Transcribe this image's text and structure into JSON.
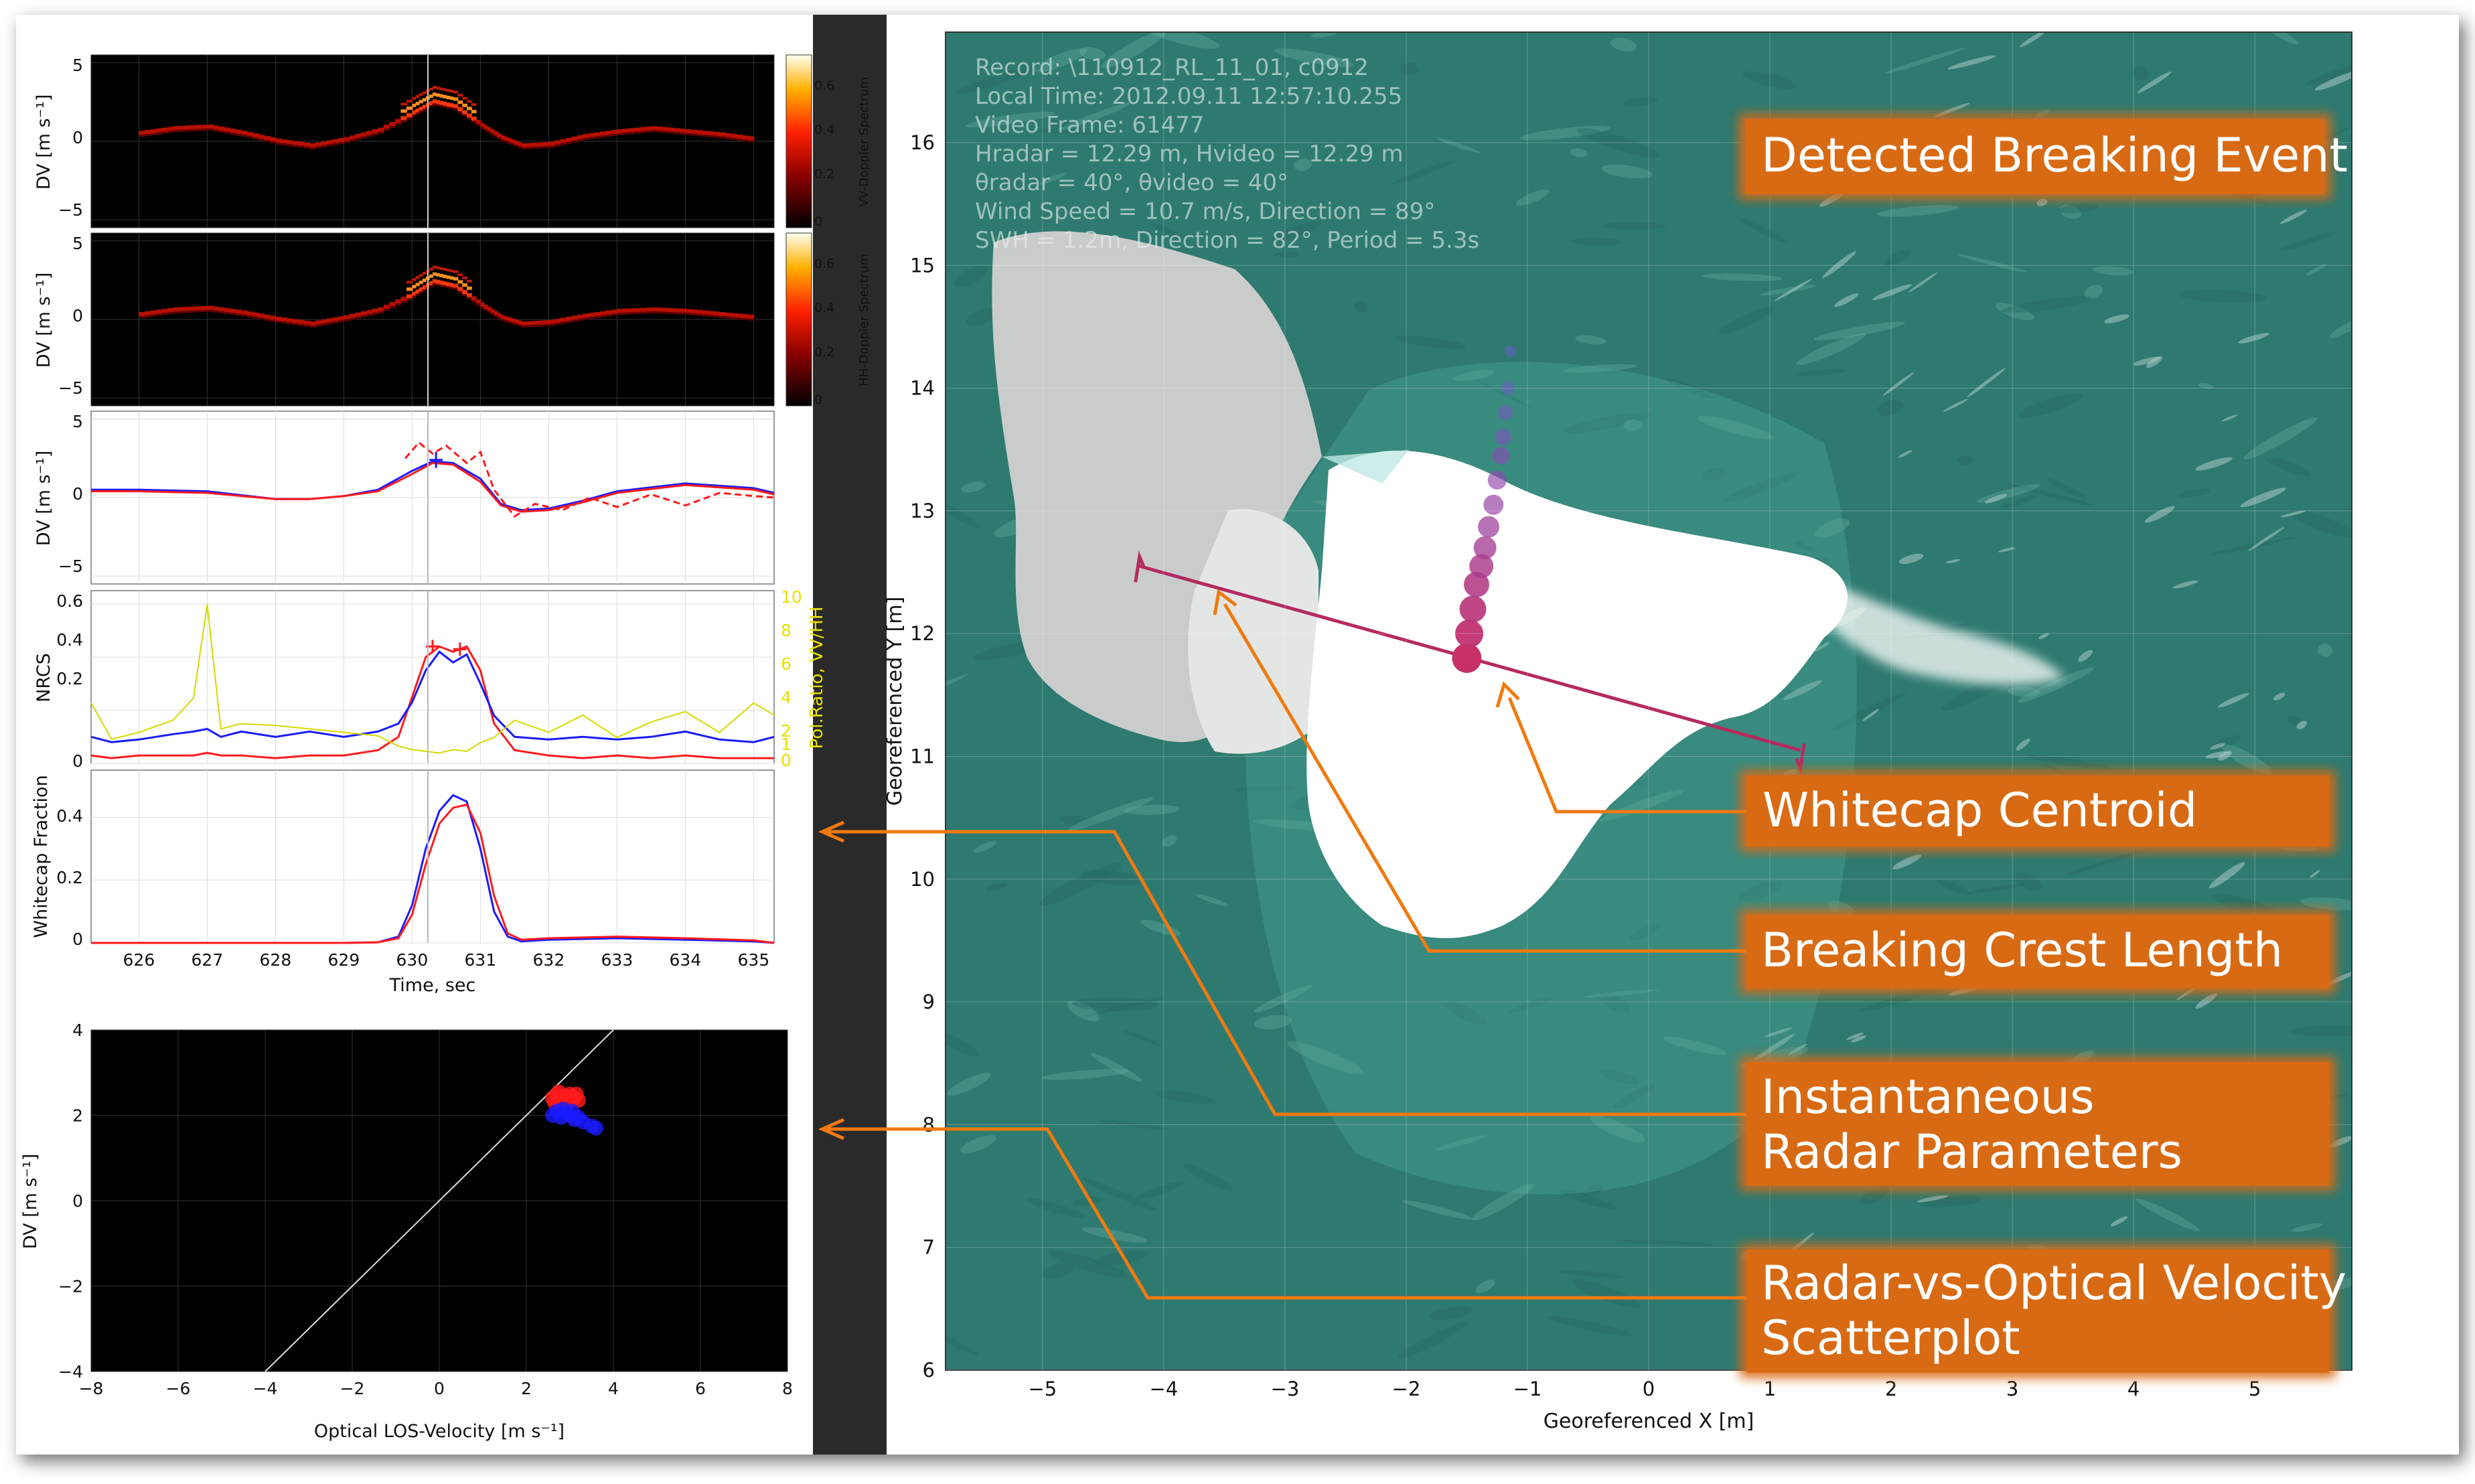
{
  "colors": {
    "frame": "#2a2a2a",
    "vv_series": "#ff1a1a",
    "hh_series": "#1a1aff",
    "ratio_series": "#d8d800",
    "centroid": "#c8306a",
    "crest_line": "#b52a60",
    "callout": "#d96b14",
    "sea": "#2e7a70",
    "whitecap": "#ffffff"
  },
  "chart_data": [
    {
      "type": "heatmap",
      "panel": "vv-doppler",
      "ylabel": "DV [m s⁻¹]",
      "yticks": [
        "5",
        "0",
        "−5"
      ],
      "ylim": [
        -5.5,
        5.5
      ],
      "colorbar_label": "VV-Doppler Spectrum",
      "colorbar_ticks": [
        "0.6",
        "0.4",
        "0.2",
        "0"
      ],
      "x": [
        626,
        626.5,
        627,
        627.5,
        628,
        628.5,
        629,
        629.5,
        630,
        630.3,
        630.6,
        631,
        631.3,
        631.6,
        632,
        632.5,
        633,
        633.5,
        634,
        634.5,
        635
      ],
      "peak_dv": [
        0.5,
        0.8,
        0.9,
        0.5,
        0,
        -0.3,
        0.1,
        0.7,
        1.8,
        2.5,
        2.2,
        1.0,
        0.2,
        -0.3,
        -0.2,
        0.3,
        0.6,
        0.8,
        0.6,
        0.4,
        0.1
      ]
    },
    {
      "type": "heatmap",
      "panel": "hh-doppler",
      "ylabel": "DV [m s⁻¹]",
      "yticks": [
        "5",
        "0",
        "−5"
      ],
      "ylim": [
        -5.5,
        5.5
      ],
      "colorbar_label": "HH-Doppler Spectrum",
      "colorbar_ticks": [
        "0.6",
        "0.4",
        "0.2",
        "0"
      ],
      "x": [
        626,
        626.5,
        627,
        627.5,
        628,
        628.5,
        629,
        629.5,
        630,
        630.3,
        630.6,
        631,
        631.3,
        631.6,
        632,
        632.5,
        633,
        633.5,
        634,
        634.5,
        635
      ],
      "peak_dv": [
        0.3,
        0.6,
        0.7,
        0.4,
        0,
        -0.3,
        0.1,
        0.6,
        1.6,
        2.4,
        2.1,
        0.9,
        0.1,
        -0.3,
        -0.2,
        0.2,
        0.5,
        0.6,
        0.5,
        0.3,
        0.1
      ]
    },
    {
      "type": "line",
      "panel": "doppler-velocity",
      "ylabel": "DV [m s⁻¹]",
      "yticks": [
        "5",
        "0",
        "−5"
      ],
      "ylim": [
        -5.5,
        5.5
      ],
      "x": [
        625.3,
        626,
        627,
        628,
        628.5,
        629,
        629.5,
        630,
        630.3,
        630.6,
        631,
        631.3,
        631.6,
        632,
        632.5,
        633,
        634,
        635,
        635.3
      ],
      "series": [
        {
          "values": [
            0.5,
            0.5,
            0.4,
            -0.1,
            -0.1,
            0.1,
            0.5,
            1.7,
            2.3,
            2.2,
            1.2,
            -0.4,
            -0.8,
            -0.7,
            -0.2,
            0.4,
            0.9,
            0.6,
            0.3
          ]
        },
        {
          "values": [
            0.4,
            0.4,
            0.3,
            -0.1,
            -0.1,
            0.1,
            0.4,
            1.5,
            2.2,
            2.1,
            1.0,
            -0.5,
            -0.9,
            -0.8,
            -0.3,
            0.3,
            0.8,
            0.5,
            0.2
          ]
        },
        {
          "x": [
            629.9,
            630.1,
            630.3,
            630.5,
            630.8,
            631,
            631.2,
            631.5,
            631.8,
            632.2,
            632.6,
            633,
            633.5,
            634,
            634.5,
            635,
            635.3
          ],
          "values": [
            2.5,
            3.5,
            2.8,
            3.3,
            2.2,
            2.9,
            0.5,
            -1.2,
            -0.4,
            -0.8,
            0.0,
            -0.6,
            0.2,
            -0.5,
            0.3,
            0.1,
            0.0
          ]
        }
      ]
    },
    {
      "type": "line",
      "panel": "nrcs",
      "ylabel": "NRCS",
      "yticks": [
        "0.6",
        "0.4",
        "0.2",
        "0"
      ],
      "ylim": [
        0,
        0.65
      ],
      "ylabel_right": "Pol.Ratio, VV/HH",
      "yticks_right": [
        "10",
        "8",
        "6",
        "4",
        "2",
        "1",
        "0"
      ],
      "x": [
        625.3,
        625.6,
        626,
        626.5,
        626.8,
        627,
        627.2,
        627.5,
        628,
        628.5,
        629,
        629.5,
        629.8,
        630,
        630.2,
        630.4,
        630.6,
        630.8,
        631,
        631.2,
        631.5,
        632,
        632.5,
        633,
        633.5,
        634,
        634.5,
        635,
        635.3
      ],
      "series": [
        {
          "values": [
            0.03,
            0.02,
            0.03,
            0.03,
            0.03,
            0.04,
            0.03,
            0.03,
            0.02,
            0.03,
            0.03,
            0.05,
            0.1,
            0.25,
            0.4,
            0.44,
            0.42,
            0.44,
            0.35,
            0.15,
            0.05,
            0.03,
            0.02,
            0.03,
            0.02,
            0.03,
            0.02,
            0.02,
            0.02
          ]
        },
        {
          "values": [
            0.1,
            0.08,
            0.09,
            0.11,
            0.12,
            0.13,
            0.1,
            0.12,
            0.1,
            0.12,
            0.1,
            0.12,
            0.15,
            0.23,
            0.35,
            0.42,
            0.38,
            0.41,
            0.3,
            0.18,
            0.1,
            0.09,
            0.1,
            0.09,
            0.1,
            0.12,
            0.09,
            0.08,
            0.1
          ]
        },
        {
          "values": [
            3.5,
            1.4,
            1.8,
            2.5,
            3.8,
            9.2,
            2.0,
            2.3,
            2.2,
            2.0,
            1.8,
            1.6,
            1.0,
            0.8,
            0.7,
            0.6,
            0.8,
            0.7,
            1.2,
            1.5,
            2.5,
            1.8,
            2.8,
            1.5,
            2.4,
            3.0,
            1.8,
            3.5,
            2.8
          ]
        }
      ]
    },
    {
      "type": "line",
      "panel": "whitecap-fraction",
      "ylabel": "Whitecap Fraction",
      "yticks": [
        "0.4",
        "0.2",
        "0"
      ],
      "ylim": [
        0,
        0.55
      ],
      "xlabel": "Time, sec",
      "xticks": [
        "626",
        "627",
        "628",
        "629",
        "630",
        "631",
        "632",
        "633",
        "634",
        "635"
      ],
      "xlim": [
        625.3,
        635.3
      ],
      "x": [
        625.3,
        626,
        627,
        628,
        629,
        629.5,
        629.8,
        630,
        630.2,
        630.4,
        630.6,
        630.8,
        631,
        631.2,
        631.4,
        631.6,
        632,
        633,
        634,
        635,
        635.3
      ],
      "series": [
        {
          "values": [
            0,
            0,
            0,
            0,
            0,
            0.002,
            0.02,
            0.12,
            0.3,
            0.42,
            0.47,
            0.45,
            0.3,
            0.1,
            0.02,
            0.005,
            0.01,
            0.015,
            0.01,
            0.005,
            0
          ]
        },
        {
          "values": [
            0,
            0,
            0,
            0,
            0,
            0.002,
            0.015,
            0.09,
            0.25,
            0.38,
            0.43,
            0.44,
            0.35,
            0.15,
            0.03,
            0.01,
            0.015,
            0.02,
            0.015,
            0.008,
            0
          ]
        }
      ]
    },
    {
      "type": "scatter",
      "panel": "radar-vs-optical",
      "xlabel": "Optical LOS-Velocity [m s⁻¹]",
      "ylabel": "DV [m s⁻¹]",
      "xlim": [
        -8,
        8
      ],
      "ylim": [
        -4,
        4
      ],
      "xticks": [
        "−8",
        "−6",
        "−4",
        "−2",
        "0",
        "2",
        "4",
        "6",
        "8"
      ],
      "yticks": [
        "4",
        "2",
        "0",
        "−2",
        "−4"
      ],
      "reference_line": [
        [
          -4,
          -4
        ],
        [
          4,
          4
        ]
      ],
      "series": [
        {
          "x": [
            2.6,
            2.7,
            2.8,
            2.9,
            3.0,
            3.1,
            3.2,
            2.65,
            2.75,
            2.95,
            3.05,
            3.15
          ],
          "y": [
            2.4,
            2.5,
            2.35,
            2.45,
            2.5,
            2.4,
            2.35,
            2.3,
            2.55,
            2.3,
            2.45,
            2.5
          ]
        },
        {
          "x": [
            2.6,
            2.7,
            2.8,
            2.9,
            3.0,
            3.1,
            3.2,
            3.3,
            3.5,
            3.6,
            2.85,
            3.05
          ],
          "y": [
            2.0,
            2.1,
            1.95,
            2.05,
            2.0,
            1.9,
            1.95,
            1.85,
            1.75,
            1.7,
            2.15,
            2.1
          ]
        }
      ]
    },
    {
      "type": "scatter",
      "panel": "georeferenced-map",
      "xlabel": "Georeferenced X [m]",
      "ylabel": "Georeferenced Y [m]",
      "xlim": [
        -5.8,
        5.8
      ],
      "ylim": [
        6,
        16.9
      ],
      "xticks": [
        "−5",
        "−4",
        "−3",
        "−2",
        "−1",
        "0",
        "1",
        "2",
        "3",
        "4",
        "5"
      ],
      "yticks": [
        "16",
        "15",
        "14",
        "13",
        "12",
        "11",
        "10",
        "9",
        "8",
        "7",
        "6"
      ],
      "centroid_track": {
        "x": [
          -1.5,
          -1.48,
          -1.45,
          -1.42,
          -1.38,
          -1.35,
          -1.32,
          -1.28,
          -1.25,
          -1.22,
          -1.2,
          -1.18,
          -1.16,
          -1.14
        ],
        "y": [
          11.8,
          12.0,
          12.2,
          12.4,
          12.55,
          12.7,
          12.87,
          13.05,
          13.25,
          13.45,
          13.6,
          13.8,
          14.0,
          14.3
        ]
      },
      "crest_line": [
        [
          -4.2,
          12.55
        ],
        [
          1.25,
          11.05
        ]
      ]
    }
  ],
  "overlay": {
    "record": "Record: \\110912_RL_11_01, c0912",
    "local_time": "Local Time: 2012.09.11 12:57:10.255",
    "video_frame": "Video Frame: 61477",
    "heights": "Hradar = 12.29 m, Hvideo = 12.29 m",
    "angles": "θradar = 40°, θvideo = 40°",
    "wind": "Wind Speed = 10.7 m/s, Direction = 89°",
    "swh": "SWH = 1.2m, Direction = 82°, Period = 5.3s"
  },
  "callouts": {
    "detected": "Detected Breaking Event",
    "centroid": "Whitecap Centroid",
    "crest": "Breaking Crest Length",
    "instant_1": "Instantaneous",
    "instant_2": "Radar Parameters",
    "scatter_1": "Radar-vs-Optical Velocity",
    "scatter_2": "Scatterplot"
  }
}
